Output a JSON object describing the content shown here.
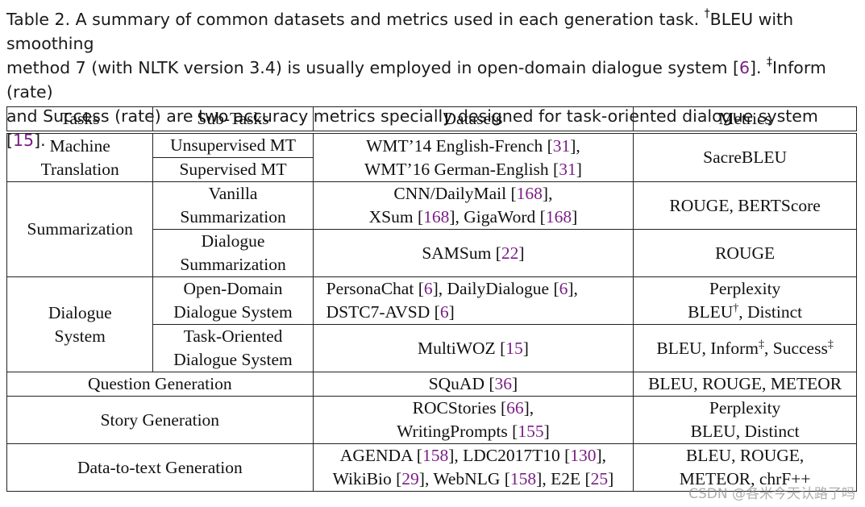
{
  "caption": {
    "line1_pre": "Table 2.  A summary of common datasets and metrics used in each generation task. ",
    "dagger": "†",
    "line1_post": "BLEU with smoothing",
    "line2_pre": "method 7 (with NLTK version 3.4) is usually employed in open-domain dialogue system [",
    "cite6": "6",
    "line2_mid": "]. ",
    "ddagger": "‡",
    "line2_post": "Inform (rate)",
    "line3_pre": "and Success (rate) are two accuracy metrics specially designed for task-oriented dialogue system [",
    "cite15": "15",
    "line3_post": "]."
  },
  "headers": [
    "Tasks",
    "Sub-Tasks",
    "Datasets",
    "Metrics"
  ],
  "rows": {
    "mt": {
      "task_l1": "Machine",
      "task_l2": "Translation",
      "sub1": "Unsupervised MT",
      "sub2": "Supervised MT",
      "ds_l1": "WMT’14 English-French [",
      "ds_c1": "31",
      "ds_l1_end": "],",
      "ds_l2": "WMT’16 German-English [",
      "ds_c2": "31",
      "ds_l2_end": "]",
      "metric": "SacreBLEU"
    },
    "sum": {
      "task": "Summarization",
      "sub1_l1": "Vanilla",
      "sub1_l2": "Summarization",
      "ds1_l1": "CNN/DailyMail [",
      "ds1_c1": "168",
      "ds1_l1_end": "],",
      "ds1_l2a": "XSum [",
      "ds1_c2": "168",
      "ds1_l2b": "], GigaWord [",
      "ds1_c3": "168",
      "ds1_l2_end": "]",
      "metric1": "ROUGE, BERTScore",
      "sub2_l1": "Dialogue",
      "sub2_l2": "Summarization",
      "ds2_pre": "SAMSum [",
      "ds2_c": "22",
      "ds2_end": "]",
      "metric2": "ROUGE"
    },
    "dlg": {
      "task_l1": "Dialogue",
      "task_l2": "System",
      "sub1_l1": "Open-Domain",
      "sub1_l2": "Dialogue System",
      "ds1_l1a": "PersonaChat [",
      "ds1_c1": "6",
      "ds1_l1b": "], DailyDialogue [",
      "ds1_c2": "6",
      "ds1_l1_end": "],",
      "ds1_l2a": "DSTC7-AVSD [",
      "ds1_c3": "6",
      "ds1_l2_end": "]",
      "metric1_l1": "Perplexity",
      "metric1_l2a": "BLEU",
      "dagger": "†",
      "metric1_l2b": ", Distinct",
      "sub2_l1": "Task-Oriented",
      "sub2_l2": "Dialogue System",
      "ds2_pre": "MultiWOZ [",
      "ds2_c": "15",
      "ds2_end": "]",
      "metric2_a": "BLEU, Inform",
      "ddagger1": "‡",
      "metric2_b": ", Success",
      "ddagger2": "‡"
    },
    "qg": {
      "task": "Question Generation",
      "ds_pre": "SQuAD [",
      "ds_c": "36",
      "ds_end": "]",
      "metric": "BLEU, ROUGE, METEOR"
    },
    "sg": {
      "task": "Story Generation",
      "ds_l1": "ROCStories [",
      "ds_c1": "66",
      "ds_l1_end": "],",
      "ds_l2": "WritingPrompts [",
      "ds_c2": "155",
      "ds_l2_end": "]",
      "metric_l1": "Perplexity",
      "metric_l2": "BLEU, Distinct"
    },
    "d2t": {
      "task": "Data-to-text Generation",
      "ds_l1a": "AGENDA [",
      "ds_c1": "158",
      "ds_l1b": "], LDC2017T10 [",
      "ds_c2": "130",
      "ds_l1_end": "],",
      "ds_l2a": "WikiBio [",
      "ds_c3": "29",
      "ds_l2b": "], WebNLG [",
      "ds_c4": "158",
      "ds_l2c": "], E2E [",
      "ds_c5": "25",
      "ds_l2_end": "]",
      "metric_l1": "BLEU, ROUGE,",
      "metric_l2": "METEOR, chrF++"
    }
  },
  "watermark": "CSDN @各米今天认路了吗",
  "colors": {
    "citation": "#7a1f85",
    "text": "#111111"
  }
}
